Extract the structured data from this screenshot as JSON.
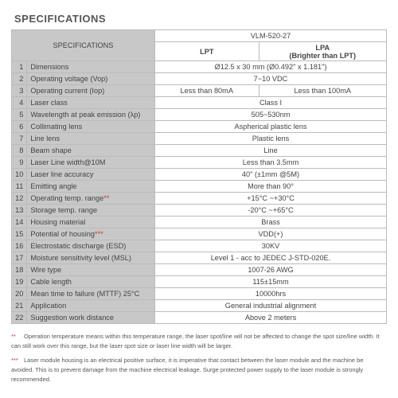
{
  "title": "SPECIFICATIONS",
  "header": {
    "spec_label": "SPECIFICATIONS",
    "model": "VLM-520-27",
    "col1": "LPT",
    "col2": "LPA",
    "col2_sub": "(Brighter than LPT)"
  },
  "rows": [
    {
      "n": "1",
      "label": "Dimensions",
      "v": "Ø12.5 x 30 mm (Ø0.492\" x 1.181\")"
    },
    {
      "n": "2",
      "label": "Operating voltage (Vop)",
      "v": "7~10 VDC"
    },
    {
      "n": "3",
      "label": "Operating current (Iop)",
      "v1": "Less than 80mA",
      "v2": "Less than 100mA"
    },
    {
      "n": "4",
      "label": "Laser class",
      "v": "Class I"
    },
    {
      "n": "5",
      "label": "Wavelength at peak emission (λp)",
      "v": "505~530nm"
    },
    {
      "n": "6",
      "label": "Collimating lens",
      "v": "Aspherical plastic lens"
    },
    {
      "n": "7",
      "label": "Line lens",
      "v": "Plastic lens"
    },
    {
      "n": "8",
      "label": "Beam shape",
      "v": "Line"
    },
    {
      "n": "9",
      "label": "Laser Line width@10M",
      "v": "Less than 3.5mm"
    },
    {
      "n": "10",
      "label": "Laser line accuracy",
      "v": "40\" (±1mm @5M)"
    },
    {
      "n": "11",
      "label": "Emitting angle",
      "v": "More than 90°"
    },
    {
      "n": "12",
      "label": "Operating temp. range",
      "ast": "**",
      "v": "+15°C ~+30°C"
    },
    {
      "n": "13",
      "label": "Storage temp. range",
      "v": "-20°C ~+65°C"
    },
    {
      "n": "14",
      "label": "Housing material",
      "v": "Brass"
    },
    {
      "n": "15",
      "label": "Potential of housing",
      "ast": "***",
      "v": "VDD(+)"
    },
    {
      "n": "16",
      "label": "Electrostatic discharge (ESD)",
      "v": "30KV"
    },
    {
      "n": "17",
      "label": "Moisture sensitivity level (MSL)",
      "v": "Level 1 - acc to JEDEC J-STD-020E."
    },
    {
      "n": "18",
      "label": "Wire type",
      "v": "1007-26 AWG"
    },
    {
      "n": "19",
      "label": "Cable length",
      "v": "115±15mm"
    },
    {
      "n": "20",
      "label": "Mean time to failure (MTTF) 25°C",
      "v": "10000hrs"
    },
    {
      "n": "21",
      "label": "Application",
      "v": "General industrial alignment"
    },
    {
      "n": "22",
      "label": "Suggestion work distance",
      "v": "Above 2 meters"
    }
  ],
  "footnotes": {
    "f2_marker": "**",
    "f2": "Operation temperature means within this temperature range, the laser spot/line will not be affected to change the spot size/line width. It can still work over this range, but the laser spot size or laser line width will be larger.",
    "f3_marker": "***",
    "f3": "Laser module housing is an electrical positive surface, it is imperative that contact between the laser module and the machine be avoided. This is to prevent damage from the machine electrical leakage. Surge protected power supply to the laser module is strongly recommended."
  }
}
